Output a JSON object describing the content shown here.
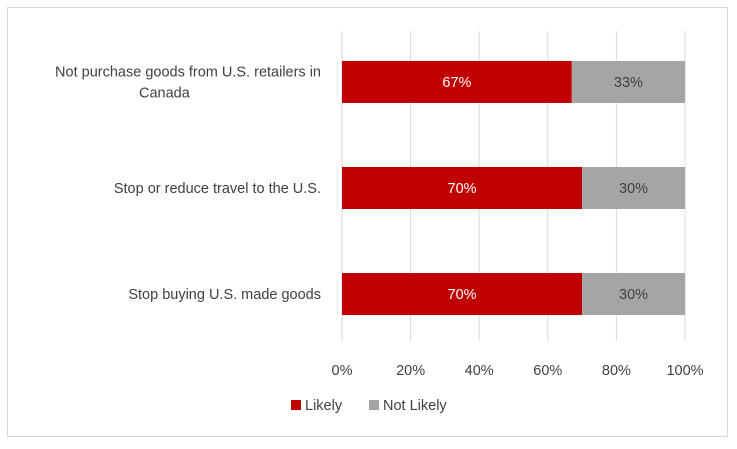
{
  "chart_data": {
    "type": "bar",
    "orientation": "horizontal",
    "stacked": true,
    "categories": [
      [
        "Not purchase goods from U.S. retailers in",
        "Canada"
      ],
      [
        "Stop or reduce travel to the U.S."
      ],
      [
        "Stop buying U.S. made goods"
      ]
    ],
    "series": [
      {
        "name": "Likely",
        "values": [
          67,
          70,
          70
        ],
        "labels": [
          "67%",
          "70%",
          "70%"
        ],
        "color": "#C00000",
        "label_color": "#ffffff"
      },
      {
        "name": "Not Likely",
        "values": [
          33,
          30,
          30
        ],
        "labels": [
          "33%",
          "30%",
          "30%"
        ],
        "color": "#A5A5A5",
        "label_color": "#404040"
      }
    ],
    "x_ticks": [
      "0%",
      "20%",
      "40%",
      "60%",
      "80%",
      "100%"
    ],
    "xlim": [
      0,
      100
    ],
    "grid": true,
    "legend_position": "bottom",
    "title": "",
    "xlabel": "",
    "ylabel": ""
  }
}
